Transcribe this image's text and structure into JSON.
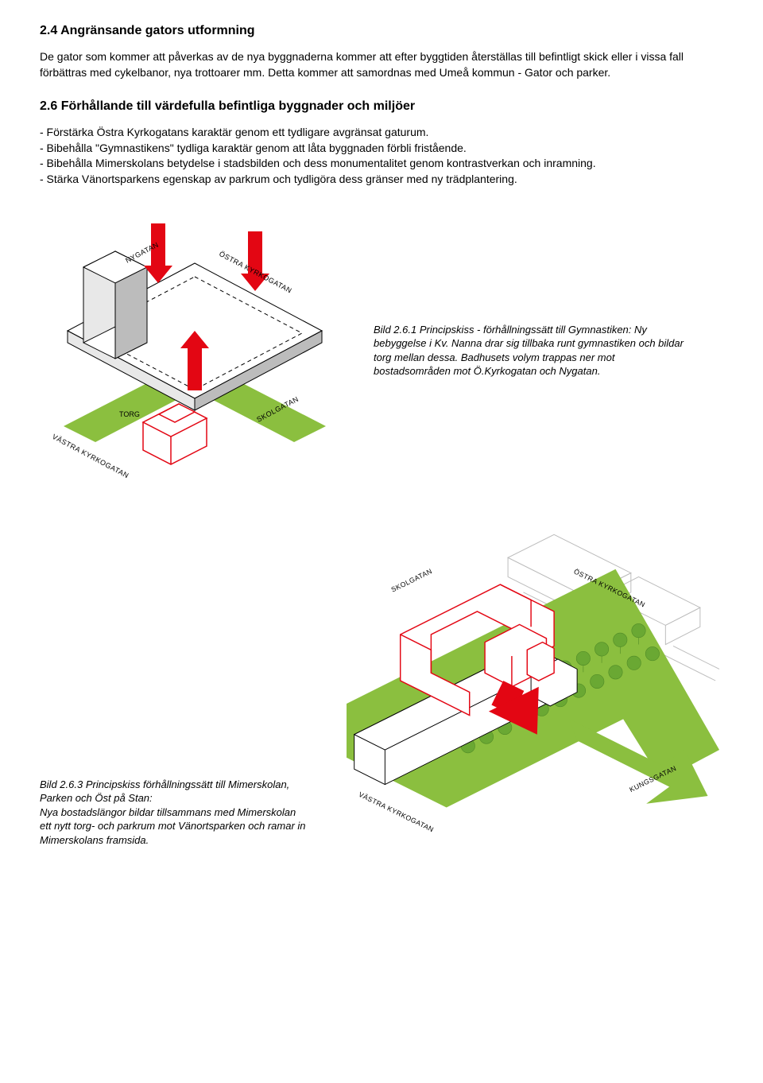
{
  "section24": {
    "heading": "2.4 Angränsande gators utformning",
    "body": "De gator som kommer att påverkas av de nya byggnaderna kommer att efter byggtiden återställas till befintligt skick eller i vissa fall förbättras med cykelbanor, nya trottoarer mm. Detta kommer att samordnas med Umeå kommun - Gator och parker."
  },
  "section26": {
    "heading": "2.6 Förhållande till värdefulla befintliga byggnader och miljöer",
    "bullets": [
      "- Förstärka Östra Kyrkogatans karaktär genom ett tydligare avgränsat gaturum.",
      "- Bibehålla \"Gymnastikens\" tydliga karaktär genom att låta byggnaden förbli fristående.",
      "- Bibehålla Mimerskolans betydelse i stadsbilden och dess monumentalitet genom kontrastverkan och inramning.",
      "- Stärka Vänortsparkens egenskap av parkrum och tydligöra dess gränser med ny trädplantering."
    ]
  },
  "diagram1": {
    "colors": {
      "red": "#e30613",
      "green": "#8bbf3f",
      "grey_light": "#e8e8e8",
      "grey_mid": "#bcbcbc",
      "line": "#000000"
    },
    "labels": {
      "nygatan": "NYGATAN",
      "ostra": "ÖSTRA KYRKOGATAN",
      "vastra": "VÄSTRA KYRKOGATAN",
      "skolgatan": "SKOLGATAN",
      "torg": "TORG"
    },
    "caption": "Bild 2.6.1 Principskiss - förhållningssätt till Gymnastiken: Ny bebyggelse i Kv. Nanna drar sig tillbaka runt gymnastiken och bildar torg mellan dessa. Badhusets volym trappas ner mot bostadsområden mot Ö.Kyrkogatan och Nygatan."
  },
  "diagram2": {
    "colors": {
      "red": "#e30613",
      "green": "#8bbf3f",
      "tree": "#6aa833",
      "grey_light": "#e8e8e8",
      "grey_stroke": "#bcbcbc",
      "line": "#000000"
    },
    "labels": {
      "skolgatan": "SKOLGATAN",
      "ostra": "ÖSTRA KYRKOGATAN",
      "vastra": "VÄSTRA KYRKOGATAN",
      "kungsgatan": "KUNGSGATAN"
    },
    "caption": "Bild 2.6.3 Principskiss förhållningssätt till Mimerskolan, Parken och Öst på Stan:\nNya bostadslängor bildar tillsammans med Mimerskolan ett nytt torg- och parkrum mot Vänortsparken och ramar in Mimerskolans framsida."
  }
}
